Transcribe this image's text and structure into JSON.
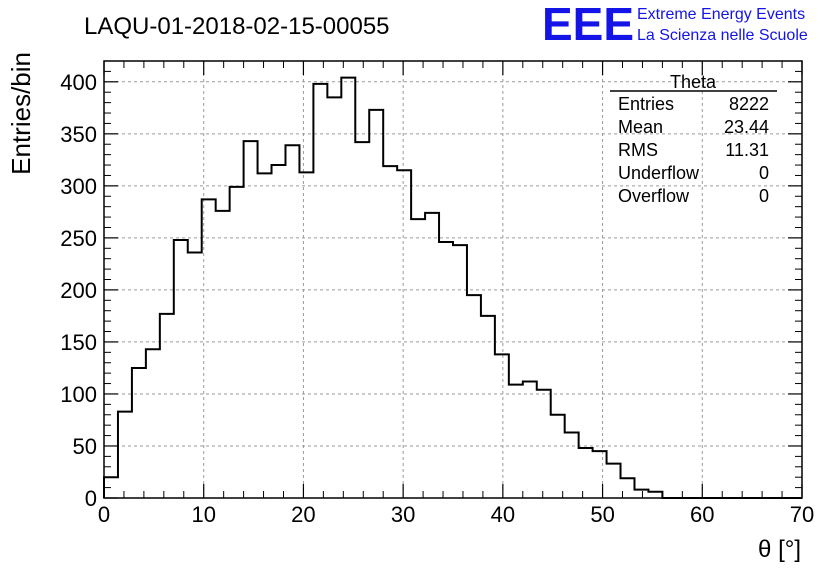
{
  "title": "LAQU-01-2018-02-15-00055",
  "logo": {
    "mark": "EEE",
    "line1": "Extreme Energy Events",
    "line2": "La Scienza nelle Scuole",
    "color": "#1414e6"
  },
  "stats": {
    "title": "Theta",
    "rows": [
      {
        "label": "Entries",
        "value": "8222"
      },
      {
        "label": "Mean",
        "value": "23.44"
      },
      {
        "label": "RMS",
        "value": "11.31"
      },
      {
        "label": "Underflow",
        "value": "0"
      },
      {
        "label": "Overflow",
        "value": "0"
      }
    ]
  },
  "chart_data": {
    "type": "histogram",
    "title": "LAQU-01-2018-02-15-00055",
    "xlabel": "θ [°]",
    "ylabel": "Entries/bin",
    "xlim": [
      0,
      70
    ],
    "ylim": [
      0,
      420
    ],
    "grid": true,
    "bin_width": 1.4,
    "bin_start": 0,
    "values": [
      20,
      83,
      125,
      143,
      177,
      248,
      236,
      287,
      276,
      299,
      343,
      312,
      320,
      339,
      313,
      398,
      385,
      404,
      342,
      373,
      319,
      315,
      268,
      274,
      246,
      243,
      195,
      175,
      138,
      109,
      112,
      104,
      80,
      63,
      48,
      45,
      33,
      19,
      8,
      6,
      0,
      0,
      0,
      0,
      0,
      0,
      0,
      0,
      0,
      0
    ],
    "x_ticks": [
      0,
      10,
      20,
      30,
      40,
      50,
      60,
      70
    ],
    "y_ticks": [
      0,
      50,
      100,
      150,
      200,
      250,
      300,
      350,
      400
    ]
  }
}
